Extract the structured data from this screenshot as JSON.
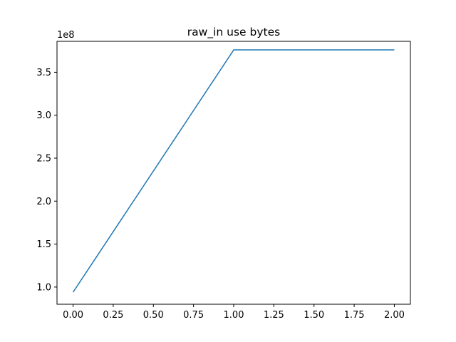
{
  "chart_data": {
    "type": "line",
    "title": "raw_in use bytes",
    "xlabel": "",
    "ylabel": "",
    "y_offset_label": "1e8",
    "xlim": [
      -0.1,
      2.1
    ],
    "ylim": [
      0.8,
      3.86
    ],
    "x_ticks": [
      0.0,
      0.25,
      0.5,
      0.75,
      1.0,
      1.25,
      1.5,
      1.75,
      2.0
    ],
    "x_tick_labels": [
      "0.00",
      "0.25",
      "0.50",
      "0.75",
      "1.00",
      "1.25",
      "1.50",
      "1.75",
      "2.00"
    ],
    "y_ticks": [
      1.0,
      1.5,
      2.0,
      2.5,
      3.0,
      3.5
    ],
    "y_tick_labels": [
      "1.0",
      "1.5",
      "2.0",
      "2.5",
      "3.0",
      "3.5"
    ],
    "grid": false,
    "legend": "none",
    "series": [
      {
        "color": "#1f77b4",
        "x": [
          0,
          1,
          2
        ],
        "y": [
          0.94,
          3.76,
          3.76
        ]
      }
    ]
  }
}
